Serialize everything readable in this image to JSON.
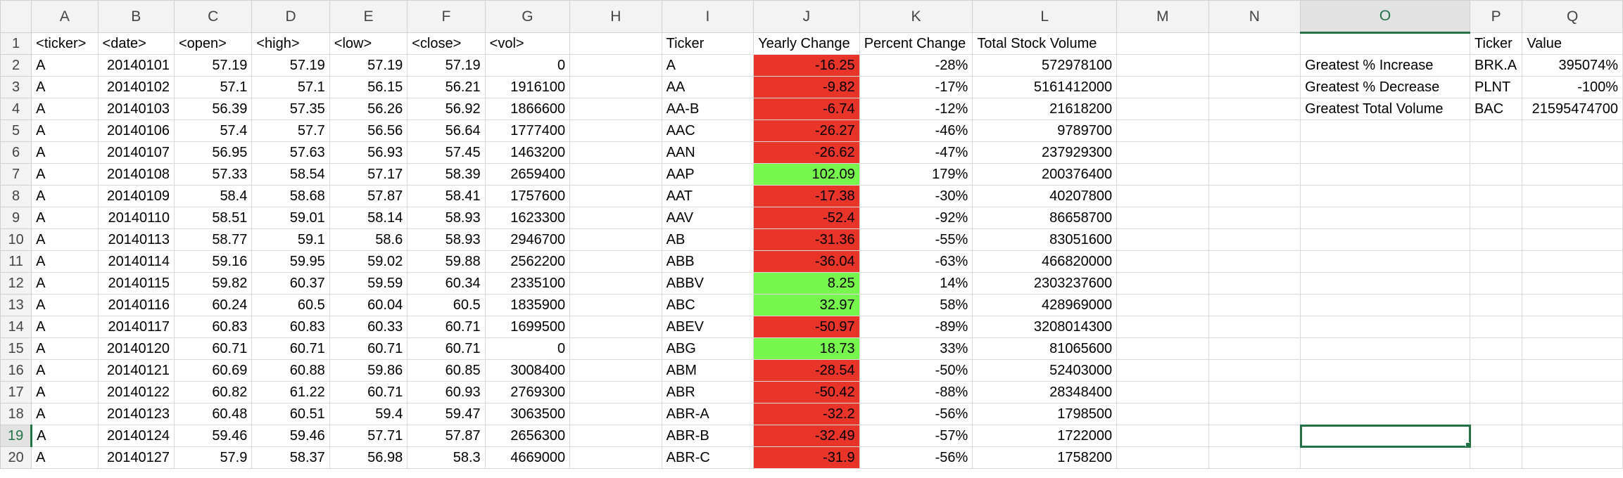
{
  "columns": [
    "",
    "A",
    "B",
    "C",
    "D",
    "E",
    "F",
    "G",
    "H",
    "I",
    "J",
    "K",
    "L",
    "M",
    "N",
    "O",
    "P",
    "Q"
  ],
  "active_col": "O",
  "active_row": 19,
  "colors": {
    "negative": "#e9342a",
    "positive": "#77f74d",
    "selection": "#217346"
  },
  "rows": [
    {
      "n": "1",
      "A": "<ticker>",
      "B": "<date>",
      "C": "<open>",
      "D": "<high>",
      "E": "<low>",
      "F": "<close>",
      "G": "<vol>",
      "H": "",
      "I": "Ticker",
      "J": "Yearly Change",
      "K": "Percent Change",
      "L": "Total Stock Volume",
      "M": "",
      "N": "",
      "O": "",
      "P": "Ticker",
      "Q": "Value",
      "Jfmt": "header"
    },
    {
      "n": "2",
      "A": "A",
      "B": "20140101",
      "C": "57.19",
      "D": "57.19",
      "E": "57.19",
      "F": "57.19",
      "G": "0",
      "H": "",
      "I": "A",
      "J": "-16.25",
      "K": "-28%",
      "L": "572978100",
      "M": "",
      "N": "",
      "O": "Greatest % Increase",
      "P": "BRK.A",
      "Q": "395074%",
      "Jfmt": "red"
    },
    {
      "n": "3",
      "A": "A",
      "B": "20140102",
      "C": "57.1",
      "D": "57.1",
      "E": "56.15",
      "F": "56.21",
      "G": "1916100",
      "H": "",
      "I": "AA",
      "J": "-9.82",
      "K": "-17%",
      "L": "5161412000",
      "M": "",
      "N": "",
      "O": "Greatest % Decrease",
      "P": "PLNT",
      "Q": "-100%",
      "Jfmt": "red"
    },
    {
      "n": "4",
      "A": "A",
      "B": "20140103",
      "C": "56.39",
      "D": "57.35",
      "E": "56.26",
      "F": "56.92",
      "G": "1866600",
      "H": "",
      "I": "AA-B",
      "J": "-6.74",
      "K": "-12%",
      "L": "21618200",
      "M": "",
      "N": "",
      "O": "Greatest Total Volume",
      "P": "BAC",
      "Q": "21595474700",
      "Jfmt": "red"
    },
    {
      "n": "5",
      "A": "A",
      "B": "20140106",
      "C": "57.4",
      "D": "57.7",
      "E": "56.56",
      "F": "56.64",
      "G": "1777400",
      "H": "",
      "I": "AAC",
      "J": "-26.27",
      "K": "-46%",
      "L": "9789700",
      "M": "",
      "N": "",
      "O": "",
      "P": "",
      "Q": "",
      "Jfmt": "red"
    },
    {
      "n": "6",
      "A": "A",
      "B": "20140107",
      "C": "56.95",
      "D": "57.63",
      "E": "56.93",
      "F": "57.45",
      "G": "1463200",
      "H": "",
      "I": "AAN",
      "J": "-26.62",
      "K": "-47%",
      "L": "237929300",
      "M": "",
      "N": "",
      "O": "",
      "P": "",
      "Q": "",
      "Jfmt": "red"
    },
    {
      "n": "7",
      "A": "A",
      "B": "20140108",
      "C": "57.33",
      "D": "58.54",
      "E": "57.17",
      "F": "58.39",
      "G": "2659400",
      "H": "",
      "I": "AAP",
      "J": "102.09",
      "K": "179%",
      "L": "200376400",
      "M": "",
      "N": "",
      "O": "",
      "P": "",
      "Q": "",
      "Jfmt": "green"
    },
    {
      "n": "8",
      "A": "A",
      "B": "20140109",
      "C": "58.4",
      "D": "58.68",
      "E": "57.87",
      "F": "58.41",
      "G": "1757600",
      "H": "",
      "I": "AAT",
      "J": "-17.38",
      "K": "-30%",
      "L": "40207800",
      "M": "",
      "N": "",
      "O": "",
      "P": "",
      "Q": "",
      "Jfmt": "red"
    },
    {
      "n": "9",
      "A": "A",
      "B": "20140110",
      "C": "58.51",
      "D": "59.01",
      "E": "58.14",
      "F": "58.93",
      "G": "1623300",
      "H": "",
      "I": "AAV",
      "J": "-52.4",
      "K": "-92%",
      "L": "86658700",
      "M": "",
      "N": "",
      "O": "",
      "P": "",
      "Q": "",
      "Jfmt": "red"
    },
    {
      "n": "10",
      "A": "A",
      "B": "20140113",
      "C": "58.77",
      "D": "59.1",
      "E": "58.6",
      "F": "58.93",
      "G": "2946700",
      "H": "",
      "I": "AB",
      "J": "-31.36",
      "K": "-55%",
      "L": "83051600",
      "M": "",
      "N": "",
      "O": "",
      "P": "",
      "Q": "",
      "Jfmt": "red"
    },
    {
      "n": "11",
      "A": "A",
      "B": "20140114",
      "C": "59.16",
      "D": "59.95",
      "E": "59.02",
      "F": "59.88",
      "G": "2562200",
      "H": "",
      "I": "ABB",
      "J": "-36.04",
      "K": "-63%",
      "L": "466820000",
      "M": "",
      "N": "",
      "O": "",
      "P": "",
      "Q": "",
      "Jfmt": "red"
    },
    {
      "n": "12",
      "A": "A",
      "B": "20140115",
      "C": "59.82",
      "D": "60.37",
      "E": "59.59",
      "F": "60.34",
      "G": "2335100",
      "H": "",
      "I": "ABBV",
      "J": "8.25",
      "K": "14%",
      "L": "2303237600",
      "M": "",
      "N": "",
      "O": "",
      "P": "",
      "Q": "",
      "Jfmt": "green"
    },
    {
      "n": "13",
      "A": "A",
      "B": "20140116",
      "C": "60.24",
      "D": "60.5",
      "E": "60.04",
      "F": "60.5",
      "G": "1835900",
      "H": "",
      "I": "ABC",
      "J": "32.97",
      "K": "58%",
      "L": "428969000",
      "M": "",
      "N": "",
      "O": "",
      "P": "",
      "Q": "",
      "Jfmt": "green"
    },
    {
      "n": "14",
      "A": "A",
      "B": "20140117",
      "C": "60.83",
      "D": "60.83",
      "E": "60.33",
      "F": "60.71",
      "G": "1699500",
      "H": "",
      "I": "ABEV",
      "J": "-50.97",
      "K": "-89%",
      "L": "3208014300",
      "M": "",
      "N": "",
      "O": "",
      "P": "",
      "Q": "",
      "Jfmt": "red"
    },
    {
      "n": "15",
      "A": "A",
      "B": "20140120",
      "C": "60.71",
      "D": "60.71",
      "E": "60.71",
      "F": "60.71",
      "G": "0",
      "H": "",
      "I": "ABG",
      "J": "18.73",
      "K": "33%",
      "L": "81065600",
      "M": "",
      "N": "",
      "O": "",
      "P": "",
      "Q": "",
      "Jfmt": "green"
    },
    {
      "n": "16",
      "A": "A",
      "B": "20140121",
      "C": "60.69",
      "D": "60.88",
      "E": "59.86",
      "F": "60.85",
      "G": "3008400",
      "H": "",
      "I": "ABM",
      "J": "-28.54",
      "K": "-50%",
      "L": "52403000",
      "M": "",
      "N": "",
      "O": "",
      "P": "",
      "Q": "",
      "Jfmt": "red"
    },
    {
      "n": "17",
      "A": "A",
      "B": "20140122",
      "C": "60.82",
      "D": "61.22",
      "E": "60.71",
      "F": "60.93",
      "G": "2769300",
      "H": "",
      "I": "ABR",
      "J": "-50.42",
      "K": "-88%",
      "L": "28348400",
      "M": "",
      "N": "",
      "O": "",
      "P": "",
      "Q": "",
      "Jfmt": "red"
    },
    {
      "n": "18",
      "A": "A",
      "B": "20140123",
      "C": "60.48",
      "D": "60.51",
      "E": "59.4",
      "F": "59.47",
      "G": "3063500",
      "H": "",
      "I": "ABR-A",
      "J": "-32.2",
      "K": "-56%",
      "L": "1798500",
      "M": "",
      "N": "",
      "O": "",
      "P": "",
      "Q": "",
      "Jfmt": "red"
    },
    {
      "n": "19",
      "A": "A",
      "B": "20140124",
      "C": "59.46",
      "D": "59.46",
      "E": "57.71",
      "F": "57.87",
      "G": "2656300",
      "H": "",
      "I": "ABR-B",
      "J": "-32.49",
      "K": "-57%",
      "L": "1722000",
      "M": "",
      "N": "",
      "O": "",
      "P": "",
      "Q": "",
      "Jfmt": "red"
    },
    {
      "n": "20",
      "A": "A",
      "B": "20140127",
      "C": "57.9",
      "D": "58.37",
      "E": "56.98",
      "F": "58.3",
      "G": "4669000",
      "H": "",
      "I": "ABR-C",
      "J": "-31.9",
      "K": "-56%",
      "L": "1758200",
      "M": "",
      "N": "",
      "O": "",
      "P": "",
      "Q": "",
      "Jfmt": "red"
    }
  ]
}
